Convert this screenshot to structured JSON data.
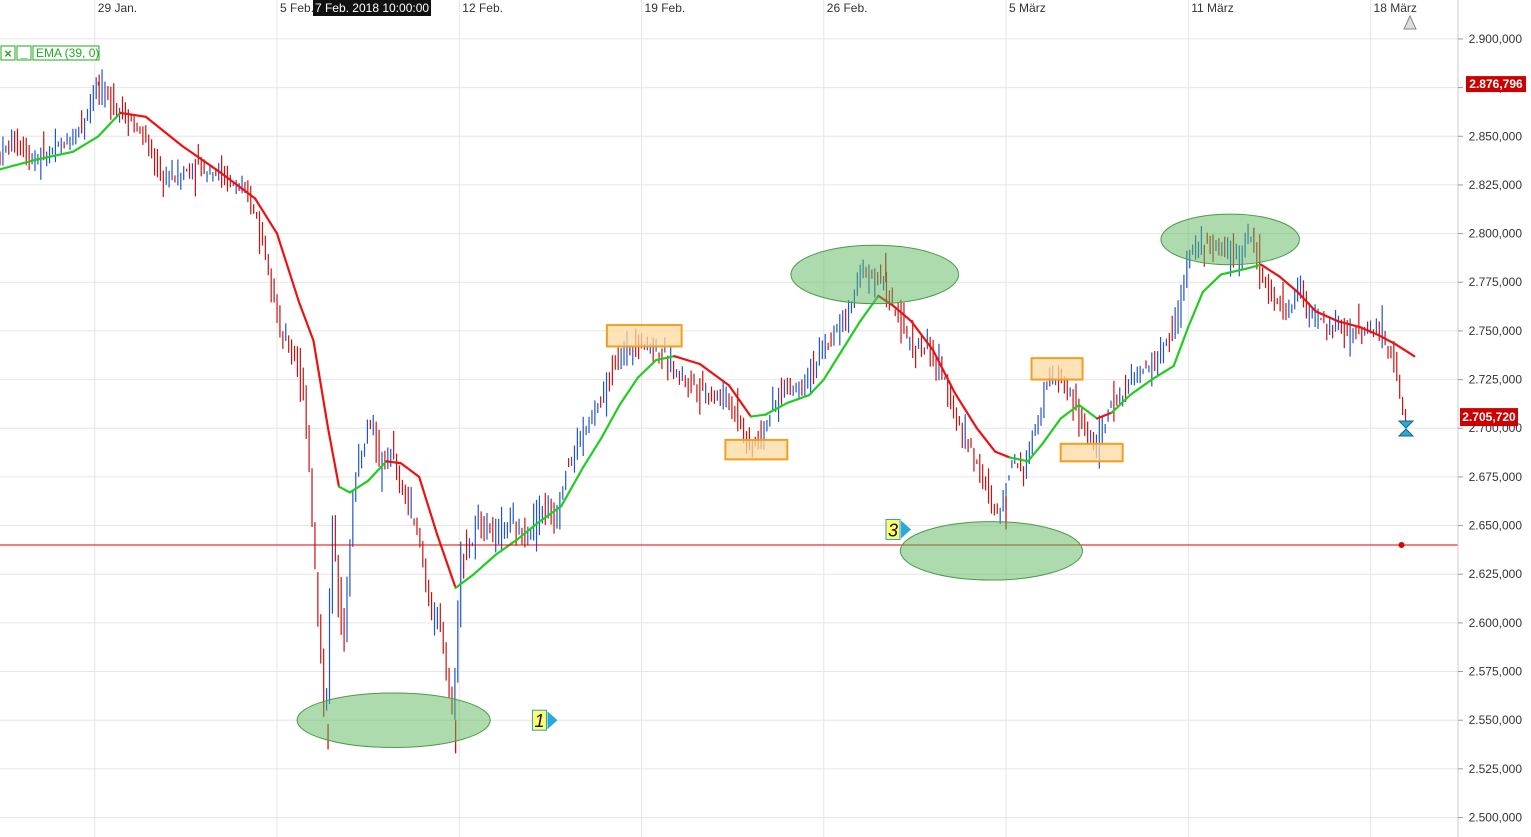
{
  "toolbar": {
    "close_symbol": "×",
    "minimize_symbol": "_",
    "indicator_label": "EMA (39, 0)"
  },
  "crosshair": {
    "date_label": "7 Feb. 2018 10:00:00"
  },
  "price_tags": {
    "upper": {
      "text": "2.876,796",
      "value": 2876.796
    },
    "current": {
      "text": "2.705,720",
      "value": 2705.72
    }
  },
  "markers": [
    {
      "label": "1",
      "x": 14.8,
      "y": 2550
    },
    {
      "label": "3",
      "x": 24.5,
      "y": 2648
    }
  ],
  "colors": {
    "bull_candle": "#2255cc",
    "bear_candle": "#cc1111",
    "ema_up": "#22cc22",
    "ema_down": "#ee1111",
    "support_line": "#dd0000",
    "ellipse_fill": "#5cb85c",
    "box_fill": "#ffd9a0",
    "box_stroke": "#f0a020",
    "grid": "#e6e6e6",
    "price_tag": "#cc0000",
    "tip_icon": "#29a9d6"
  },
  "chart_data": {
    "type": "line",
    "title": "",
    "xlabel": "",
    "ylabel": "",
    "x_axis": {
      "tick_labels": [
        "29 Jan.",
        "5 Feb.",
        "12 Feb.",
        "19 Feb.",
        "26 Feb.",
        "5 März",
        "11 März",
        "18 März"
      ],
      "tick_positions": [
        2.6,
        7.6,
        12.6,
        17.6,
        22.6,
        27.6,
        32.6,
        37.6
      ],
      "range": [
        0,
        40
      ]
    },
    "y_axis": {
      "ylim": [
        2490,
        2920
      ],
      "tick_values": [
        2500,
        2525,
        2550,
        2575,
        2600,
        2625,
        2650,
        2675,
        2700,
        2725,
        2750,
        2775,
        2800,
        2825,
        2850,
        2875,
        2900
      ],
      "tick_labels": [
        "2.500,000",
        "2.525,000",
        "2.550,000",
        "2.575,000",
        "2.600,000",
        "2.625,000",
        "2.650,000",
        "2.675,000",
        "2.700,000",
        "2.725,000",
        "2.750,000",
        "2.775,000",
        "2.800,000",
        "2.825,000",
        "2.850,000",
        "2.875,000",
        "2.900,000"
      ]
    },
    "grid": true,
    "price_path": [
      [
        0,
        2840
      ],
      [
        0.5,
        2848
      ],
      [
        1,
        2838
      ],
      [
        1.5,
        2842
      ],
      [
        2,
        2848
      ],
      [
        2.4,
        2860
      ],
      [
        2.7,
        2876
      ],
      [
        3,
        2870
      ],
      [
        3.5,
        2862
      ],
      [
        4,
        2850
      ],
      [
        4.5,
        2828
      ],
      [
        5,
        2830
      ],
      [
        5.5,
        2835
      ],
      [
        6,
        2832
      ],
      [
        6.5,
        2825
      ],
      [
        7,
        2815
      ],
      [
        7.4,
        2790
      ],
      [
        7.8,
        2745
      ],
      [
        8.2,
        2738
      ],
      [
        8.5,
        2700
      ],
      [
        8.8,
        2600
      ],
      [
        9.0,
        2548
      ],
      [
        9.2,
        2650
      ],
      [
        9.5,
        2590
      ],
      [
        9.8,
        2675
      ],
      [
        10,
        2690
      ],
      [
        10.3,
        2705
      ],
      [
        10.5,
        2675
      ],
      [
        10.8,
        2690
      ],
      [
        11,
        2672
      ],
      [
        11.3,
        2660
      ],
      [
        11.6,
        2640
      ],
      [
        11.9,
        2605
      ],
      [
        12.2,
        2595
      ],
      [
        12.5,
        2550
      ],
      [
        12.7,
        2635
      ],
      [
        13,
        2640
      ],
      [
        13.3,
        2655
      ],
      [
        13.6,
        2645
      ],
      [
        14,
        2650
      ],
      [
        14.5,
        2645
      ],
      [
        15,
        2660
      ],
      [
        15.3,
        2650
      ],
      [
        15.6,
        2680
      ],
      [
        16,
        2695
      ],
      [
        16.5,
        2712
      ],
      [
        17,
        2735
      ],
      [
        17.5,
        2745
      ],
      [
        18,
        2742
      ],
      [
        18.5,
        2730
      ],
      [
        19,
        2725
      ],
      [
        19.5,
        2718
      ],
      [
        20,
        2715
      ],
      [
        20.3,
        2708
      ],
      [
        20.6,
        2690
      ],
      [
        21,
        2698
      ],
      [
        21.5,
        2720
      ],
      [
        22,
        2722
      ],
      [
        22.5,
        2735
      ],
      [
        23,
        2750
      ],
      [
        23.4,
        2762
      ],
      [
        23.7,
        2782
      ],
      [
        24,
        2780
      ],
      [
        24.3,
        2775
      ],
      [
        24.6,
        2760
      ],
      [
        25,
        2745
      ],
      [
        25.5,
        2740
      ],
      [
        26,
        2725
      ],
      [
        26.3,
        2705
      ],
      [
        26.7,
        2690
      ],
      [
        27,
        2675
      ],
      [
        27.3,
        2660
      ],
      [
        27.5,
        2655
      ],
      [
        27.8,
        2685
      ],
      [
        28.2,
        2680
      ],
      [
        28.5,
        2705
      ],
      [
        28.8,
        2725
      ],
      [
        29.2,
        2725
      ],
      [
        29.5,
        2715
      ],
      [
        29.8,
        2700
      ],
      [
        30.2,
        2690
      ],
      [
        30.5,
        2710
      ],
      [
        31,
        2722
      ],
      [
        31.5,
        2730
      ],
      [
        32,
        2740
      ],
      [
        32.4,
        2760
      ],
      [
        32.7,
        2790
      ],
      [
        33,
        2795
      ],
      [
        33.5,
        2792
      ],
      [
        34,
        2790
      ],
      [
        34.4,
        2798
      ],
      [
        34.7,
        2778
      ],
      [
        35,
        2765
      ],
      [
        35.4,
        2760
      ],
      [
        35.7,
        2772
      ],
      [
        36,
        2760
      ],
      [
        36.5,
        2752
      ],
      [
        37,
        2750
      ],
      [
        37.5,
        2752
      ],
      [
        38,
        2748
      ],
      [
        38.3,
        2735
      ],
      [
        38.6,
        2705
      ]
    ],
    "ema_path": [
      [
        0,
        2833
      ],
      [
        1,
        2838
      ],
      [
        2,
        2842
      ],
      [
        2.7,
        2850
      ],
      [
        3.3,
        2862
      ],
      [
        4,
        2860
      ],
      [
        5,
        2845
      ],
      [
        6,
        2832
      ],
      [
        7,
        2818
      ],
      [
        7.6,
        2800
      ],
      [
        8.2,
        2765
      ],
      [
        8.6,
        2745
      ],
      [
        9.0,
        2700
      ],
      [
        9.3,
        2670
      ],
      [
        9.6,
        2667
      ],
      [
        10.1,
        2673
      ],
      [
        10.6,
        2683
      ],
      [
        11,
        2682
      ],
      [
        11.5,
        2675
      ],
      [
        12,
        2645
      ],
      [
        12.5,
        2618
      ],
      [
        13,
        2625
      ],
      [
        13.6,
        2635
      ],
      [
        14.2,
        2643
      ],
      [
        14.8,
        2652
      ],
      [
        15.4,
        2660
      ],
      [
        16,
        2680
      ],
      [
        16.5,
        2695
      ],
      [
        17,
        2712
      ],
      [
        17.5,
        2726
      ],
      [
        18,
        2735
      ],
      [
        18.5,
        2737
      ],
      [
        19.2,
        2733
      ],
      [
        20,
        2722
      ],
      [
        20.6,
        2706
      ],
      [
        21,
        2707
      ],
      [
        21.6,
        2713
      ],
      [
        22.2,
        2717
      ],
      [
        22.6,
        2725
      ],
      [
        23.1,
        2740
      ],
      [
        23.6,
        2755
      ],
      [
        24.1,
        2768
      ],
      [
        24.5,
        2763
      ],
      [
        25,
        2755
      ],
      [
        25.6,
        2740
      ],
      [
        26.2,
        2718
      ],
      [
        26.8,
        2700
      ],
      [
        27.3,
        2688
      ],
      [
        27.7,
        2685
      ],
      [
        28.2,
        2683
      ],
      [
        28.6,
        2692
      ],
      [
        29.1,
        2705
      ],
      [
        29.6,
        2712
      ],
      [
        30.1,
        2705
      ],
      [
        30.5,
        2708
      ],
      [
        31,
        2717
      ],
      [
        31.6,
        2725
      ],
      [
        32.2,
        2732
      ],
      [
        32.6,
        2752
      ],
      [
        33,
        2770
      ],
      [
        33.5,
        2779
      ],
      [
        34.2,
        2782
      ],
      [
        34.6,
        2784
      ],
      [
        35.1,
        2778
      ],
      [
        35.6,
        2770
      ],
      [
        36.1,
        2760
      ],
      [
        36.7,
        2755
      ],
      [
        37.3,
        2752
      ],
      [
        37.8,
        2748
      ],
      [
        38.3,
        2743
      ],
      [
        38.8,
        2737
      ]
    ],
    "ema_down_ranges": [
      [
        3.3,
        9.3
      ],
      [
        10.6,
        12.5
      ],
      [
        18.5,
        20.6
      ],
      [
        24.1,
        27.7
      ],
      [
        30.1,
        30.5
      ],
      [
        34.6,
        38.8
      ]
    ],
    "support_level": 2640,
    "ellipses": [
      {
        "cx": 10.8,
        "cy": 2550,
        "rx": 2.65,
        "ry": 14
      },
      {
        "cx": 24.0,
        "cy": 2779,
        "rx": 2.3,
        "ry": 15
      },
      {
        "cx": 27.2,
        "cy": 2637,
        "rx": 2.5,
        "ry": 15
      },
      {
        "cx": 33.75,
        "cy": 2797,
        "rx": 1.9,
        "ry": 13
      }
    ],
    "boxes": [
      {
        "x1": 16.65,
        "x2": 18.7,
        "y1": 2742,
        "y2": 2753
      },
      {
        "x1": 19.9,
        "x2": 21.6,
        "y1": 2684,
        "y2": 2694
      },
      {
        "x1": 28.3,
        "x2": 29.7,
        "y1": 2725,
        "y2": 2736
      },
      {
        "x1": 29.1,
        "x2": 30.8,
        "y1": 2683,
        "y2": 2692
      }
    ]
  }
}
